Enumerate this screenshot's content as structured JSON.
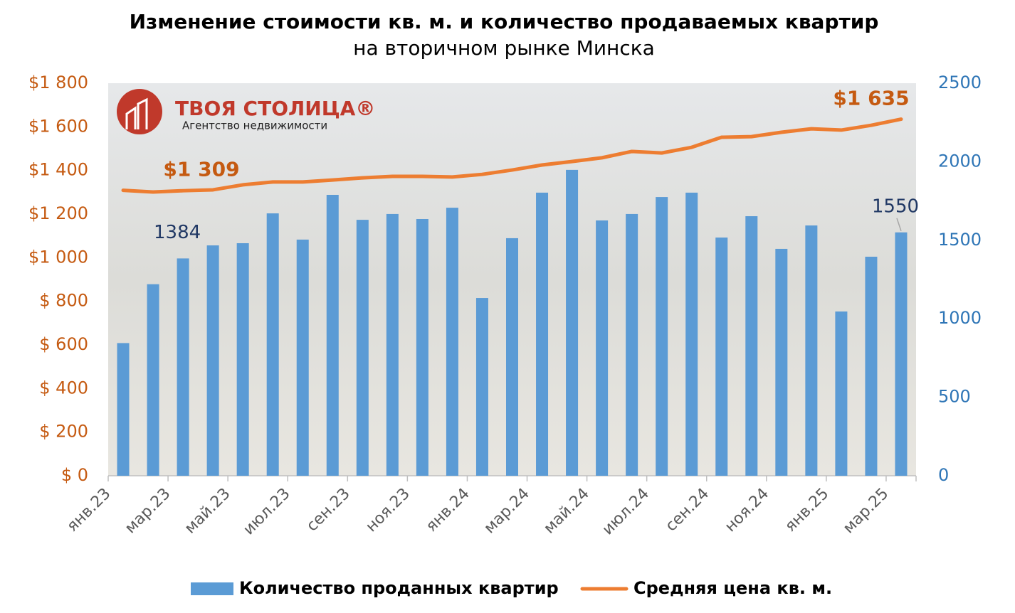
{
  "chart_data": {
    "type": "bar_line",
    "title": "Изменение стоимости кв. м. и количество продаваемых квартир",
    "subtitle": "на вторичном рынке Минска",
    "logo": {
      "name": "ТВОЯ СТОЛИЦА®",
      "tagline": "Агентство недвижимости"
    },
    "categories": [
      "янв.23",
      null,
      "мар.23",
      null,
      "май.23",
      null,
      "июл.23",
      null,
      "сен.23",
      null,
      "ноя.23",
      null,
      "янв.24",
      null,
      "мар.24",
      null,
      "май.24",
      null,
      "июл.24",
      null,
      "сен.24",
      null,
      "ноя.24",
      null,
      "янв.25",
      null,
      "мар.25"
    ],
    "series": [
      {
        "name": "Количество проданных квартир",
        "type": "bar",
        "axis": "y2",
        "color": "#5b9bd5",
        "values": [
          845,
          1220,
          1384,
          1467,
          1481,
          1671,
          1504,
          1789,
          1630,
          1667,
          1635,
          1707,
          1132,
          1513,
          1803,
          1948,
          1626,
          1667,
          1775,
          1803,
          1517,
          1653,
          1445,
          1594,
          1046,
          1395,
          1550
        ],
        "value_labels": [
          null,
          null,
          "1384",
          null,
          null,
          null,
          null,
          null,
          null,
          null,
          null,
          null,
          null,
          null,
          null,
          null,
          null,
          null,
          null,
          null,
          null,
          null,
          null,
          null,
          null,
          null,
          "1550"
        ]
      },
      {
        "name": "Средняя цена кв. м.",
        "type": "line",
        "axis": "y",
        "color": "#ed7d31",
        "values": [
          1309,
          1301,
          1307,
          1311,
          1334,
          1347,
          1347,
          1356,
          1366,
          1373,
          1373,
          1370,
          1382,
          1402,
          1425,
          1441,
          1458,
          1487,
          1480,
          1506,
          1552,
          1555,
          1575,
          1591,
          1585,
          1607,
          1635
        ],
        "value_labels": [
          "$1 309",
          null,
          null,
          null,
          null,
          null,
          null,
          null,
          null,
          null,
          null,
          null,
          null,
          null,
          null,
          null,
          null,
          null,
          null,
          null,
          null,
          null,
          null,
          null,
          null,
          null,
          "$1 635"
        ]
      }
    ],
    "ylim": [
      0,
      1800
    ],
    "yticks": [
      {
        "value": 0,
        "label": "$ 0"
      },
      {
        "value": 200,
        "label": "$ 200"
      },
      {
        "value": 400,
        "label": "$ 400"
      },
      {
        "value": 600,
        "label": "$ 600"
      },
      {
        "value": 800,
        "label": "$ 800"
      },
      {
        "value": 1000,
        "label": "$1 000"
      },
      {
        "value": 1200,
        "label": "$1 200"
      },
      {
        "value": 1400,
        "label": "$1 400"
      },
      {
        "value": 1600,
        "label": "$1 600"
      },
      {
        "value": 1800,
        "label": "$1 800"
      }
    ],
    "y2lim": [
      0,
      2500
    ],
    "y2ticks": [
      0,
      500,
      1000,
      1500,
      2000,
      2500
    ],
    "yaxis_color": "#c55a11",
    "y2axis_color": "#2e75b6",
    "legend": "bottom"
  }
}
